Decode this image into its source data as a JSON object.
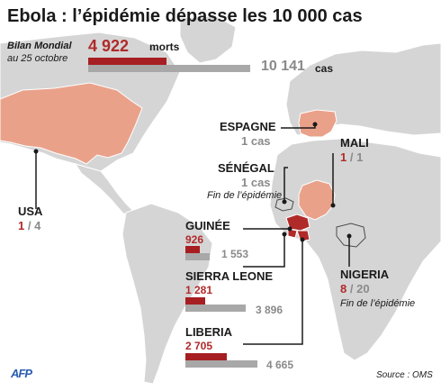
{
  "title": "Ebola : l’épidémie dépasse les 10 000 cas",
  "summary": {
    "label": "Bilan Mondial",
    "date": "au 25 octobre",
    "deaths_value": "4 922",
    "deaths_unit": "morts",
    "cases_value": "10 141",
    "cases_unit": "cas"
  },
  "source": "Source : OMS",
  "logo": "AFP",
  "countries": {
    "espagne": {
      "name": "ESPAGNE",
      "text": "1 cas"
    },
    "mali": {
      "name": "MALI",
      "deaths": "1",
      "sep": "/",
      "cases": "1"
    },
    "senegal": {
      "name": "SÉNÉGAL",
      "text": "1 cas",
      "note": "Fin de l’épidémie"
    },
    "usa": {
      "name": "USA",
      "deaths": "1",
      "sep": "/",
      "cases": "4"
    },
    "nigeria": {
      "name": "NIGERIA",
      "deaths": "8",
      "sep": "/",
      "cases": "20",
      "note": "Fin de l’épidémie"
    },
    "guinee": {
      "name": "GUINÉE",
      "deaths": "926",
      "cases": "1 553"
    },
    "sierra_leone": {
      "name": "SIERRA LEONE",
      "deaths": "1 281",
      "cases": "3 896"
    },
    "liberia": {
      "name": "LIBERIA",
      "deaths": "2 705",
      "cases": "4 665"
    }
  },
  "chart_data": {
    "type": "bar",
    "title": "Ebola : l’épidémie dépasse les 10 000 cas",
    "subtitle": "Bilan Mondial au 25 octobre",
    "series_units": [
      "morts",
      "cas"
    ],
    "bars": [
      {
        "group": "Bilan Mondial",
        "deaths": 4922,
        "cases": 10141
      },
      {
        "group": "GUINÉE",
        "deaths": 926,
        "cases": 1553
      },
      {
        "group": "SIERRA LEONE",
        "deaths": 1281,
        "cases": 3896
      },
      {
        "group": "LIBERIA",
        "deaths": 2705,
        "cases": 4665
      }
    ],
    "map_points": [
      {
        "country": "ESPAGNE",
        "deaths": null,
        "cases": 1
      },
      {
        "country": "MALI",
        "deaths": 1,
        "cases": 1
      },
      {
        "country": "SÉNÉGAL",
        "deaths": null,
        "cases": 1
      },
      {
        "country": "USA",
        "deaths": 1,
        "cases": 4
      },
      {
        "country": "NIGERIA",
        "deaths": 8,
        "cases": 20
      }
    ],
    "colors": {
      "deaths": "#a61e22",
      "cases": "#a8a8a8",
      "highlight_country": "#eaa18a",
      "outbreak_country": "#b02a2a",
      "ocean": "#ffffff",
      "land": "#d5d5d5"
    }
  }
}
